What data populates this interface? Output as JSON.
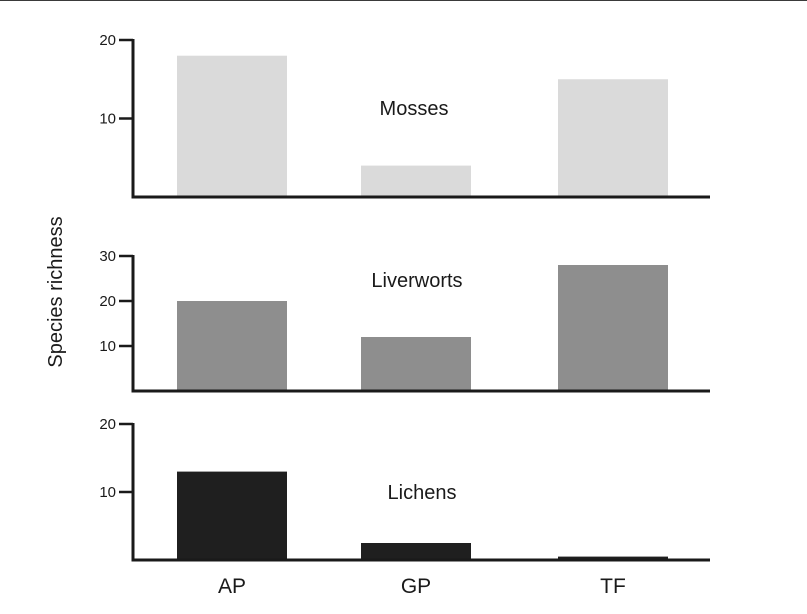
{
  "chart_data": {
    "type": "bar",
    "ylabel": "Species richness",
    "categories": [
      "AP",
      "GP",
      "TF"
    ],
    "panels": [
      {
        "name": "Mosses",
        "color": "#dadada",
        "ylim": [
          0,
          20
        ],
        "ticks": [
          {
            "value": 10,
            "label": "10"
          },
          {
            "value": 20,
            "label": "20"
          }
        ],
        "values": [
          18,
          4,
          15
        ]
      },
      {
        "name": "Liverworts",
        "color": "#8e8e8e",
        "ylim": [
          0,
          30
        ],
        "ticks": [
          {
            "value": 10,
            "label": "10"
          },
          {
            "value": 20,
            "label": "20"
          },
          {
            "value": 30,
            "label": "30"
          }
        ],
        "values": [
          20,
          12,
          28
        ]
      },
      {
        "name": "Lichens",
        "color": "#1f1f1f",
        "ylim": [
          0,
          20
        ],
        "ticks": [
          {
            "value": 10,
            "label": "10"
          },
          {
            "value": 20,
            "label": "20"
          }
        ],
        "values": [
          13,
          2.5,
          0.5
        ]
      }
    ]
  }
}
